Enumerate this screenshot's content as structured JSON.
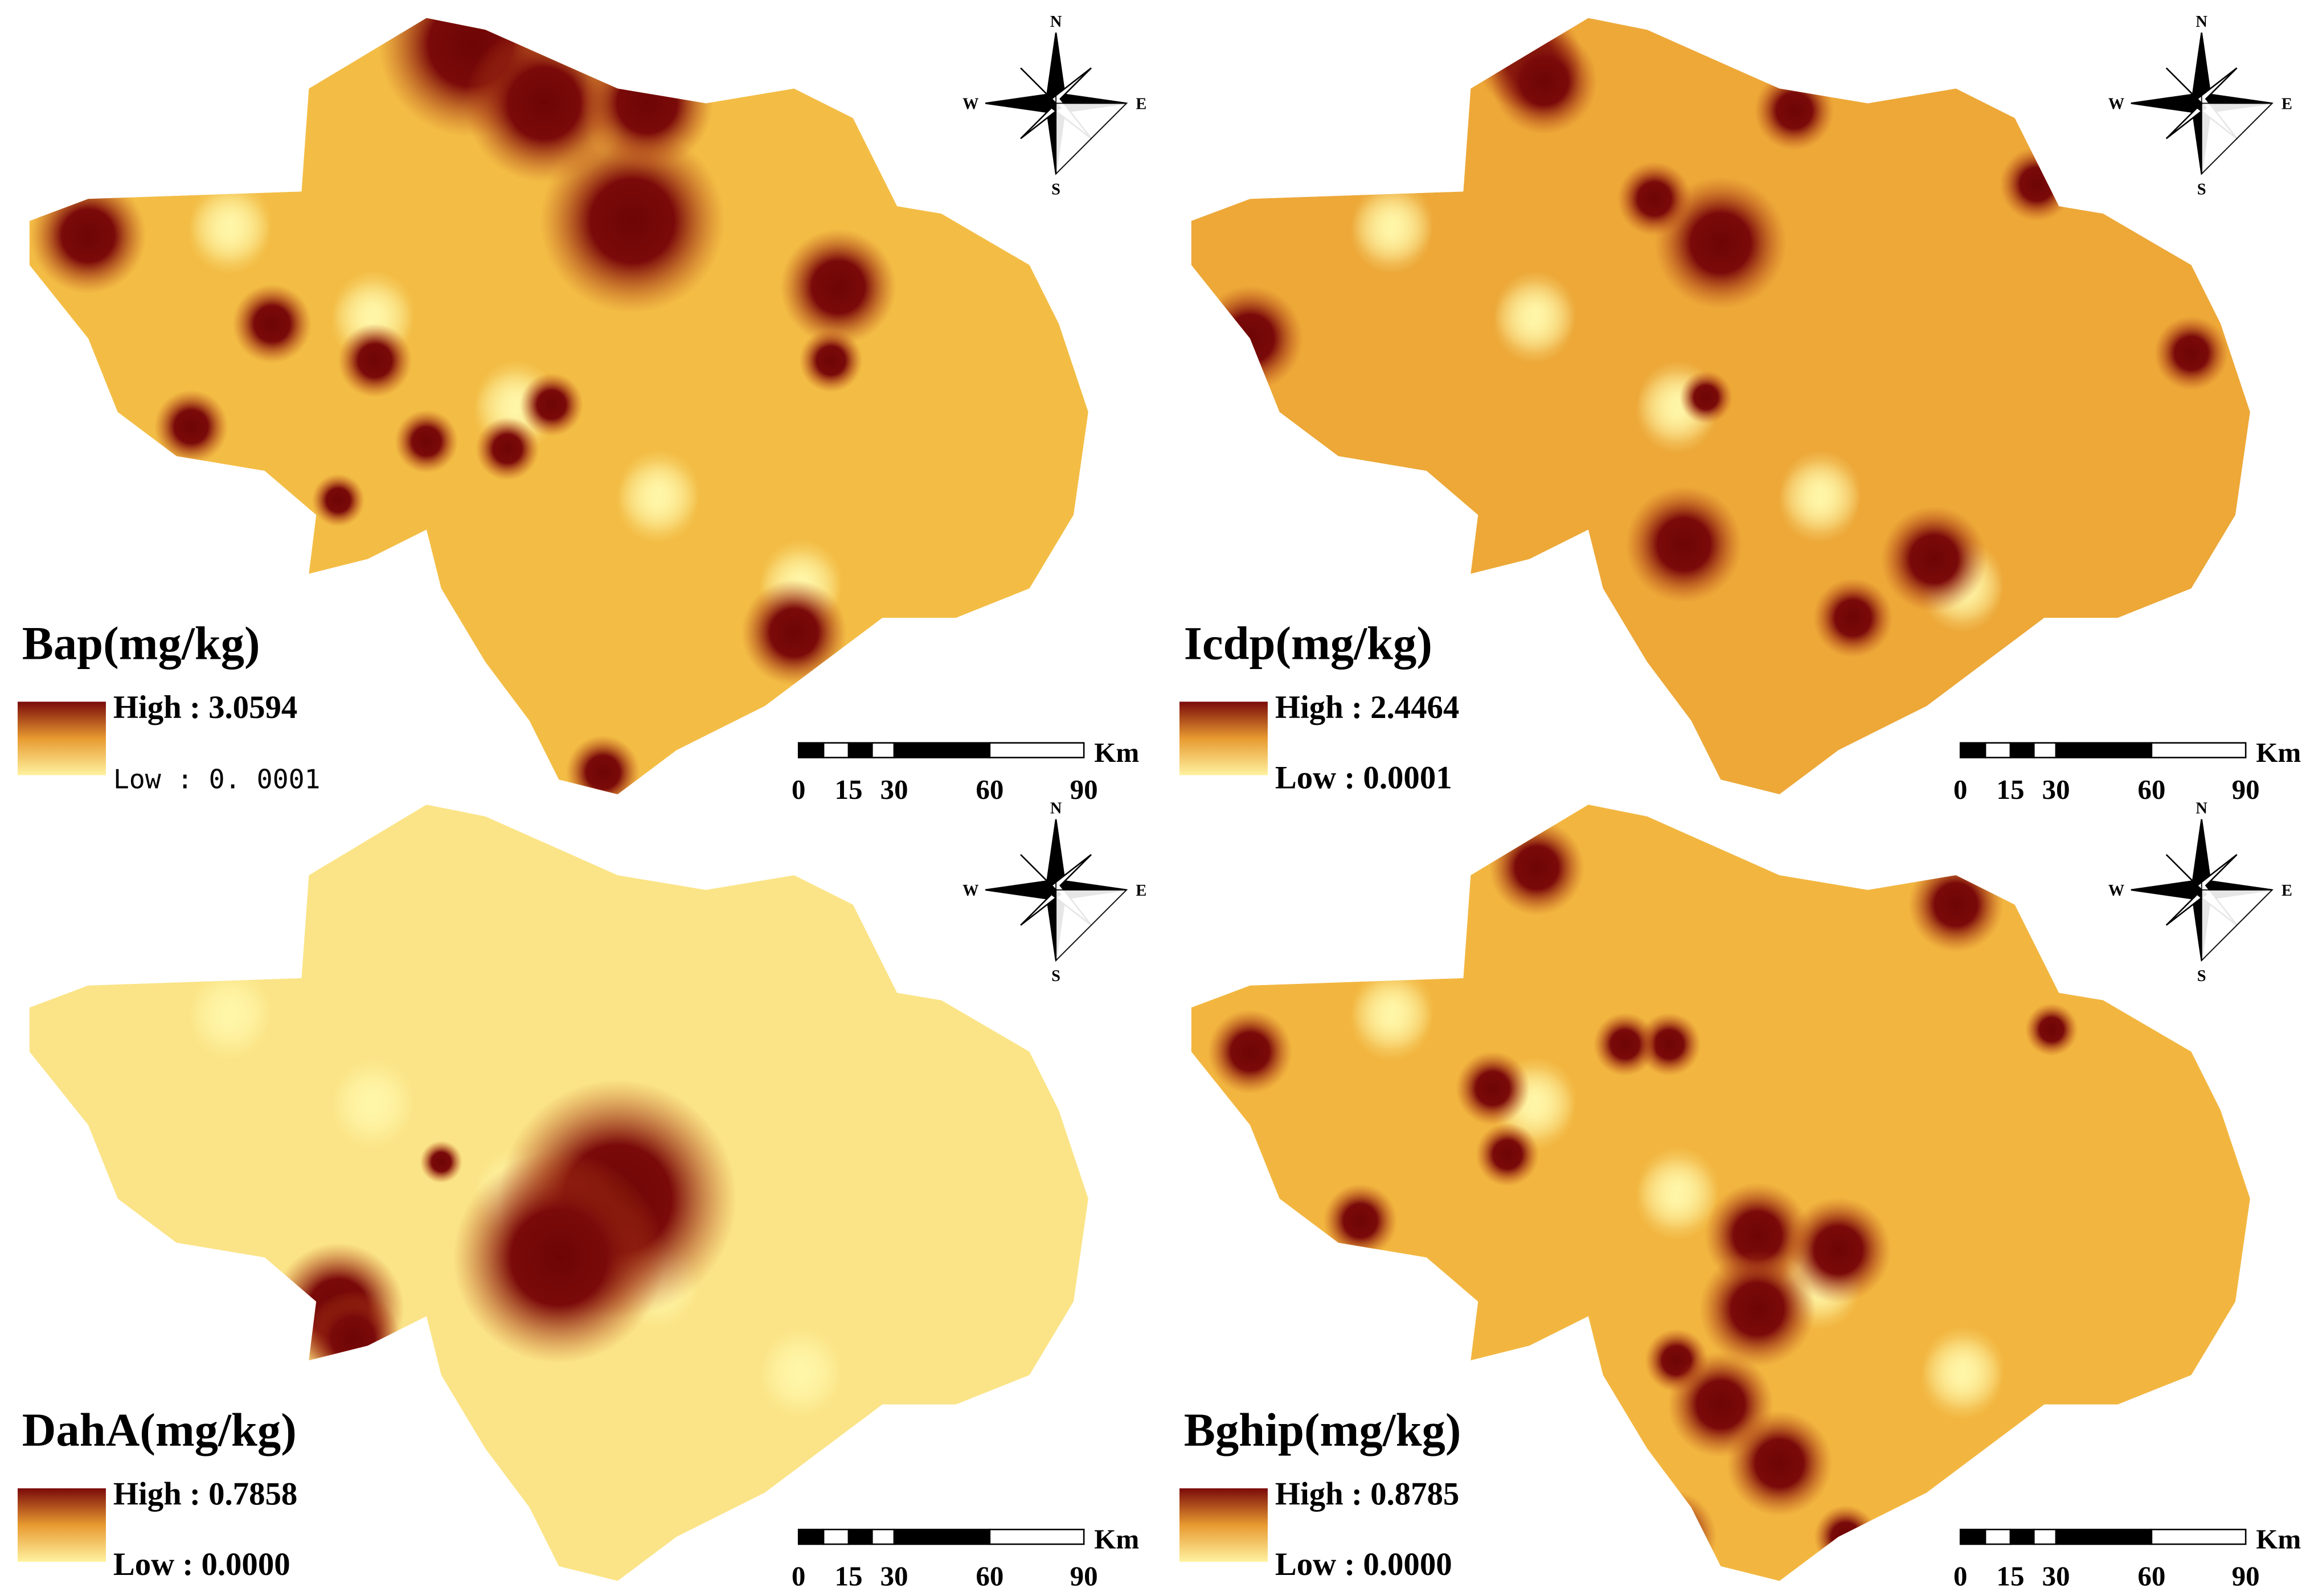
{
  "panels": [
    {
      "title": "Bap(mg/kg)",
      "legend": {
        "high": "High : 3.0594",
        "low": "Low  :  0. 0001"
      },
      "scale_bar": {
        "ticks": [
          "0",
          "15",
          "30",
          "60",
          "90"
        ],
        "unit": "Km"
      },
      "compass": {
        "n": "N",
        "s": "S",
        "e": "E",
        "w": "W"
      }
    },
    {
      "title": "Icdp(mg/kg)",
      "legend": {
        "high": "High : 2.4464",
        "low": "Low : 0.0001"
      },
      "scale_bar": {
        "ticks": [
          "0",
          "15",
          "30",
          "60",
          "90"
        ],
        "unit": "Km"
      },
      "compass": {
        "n": "N",
        "s": "S",
        "e": "E",
        "w": "W"
      }
    },
    {
      "title": "DahA(mg/kg)",
      "legend": {
        "high": "High : 0.7858",
        "low": "Low : 0.0000"
      },
      "scale_bar": {
        "ticks": [
          "0",
          "15",
          "30",
          "60",
          "90"
        ],
        "unit": "Km"
      },
      "compass": {
        "n": "N",
        "s": "S",
        "e": "E",
        "w": "W"
      }
    },
    {
      "title": "Bghip(mg/kg)",
      "legend": {
        "high": "High : 0.8785",
        "low": "Low : 0.0000"
      },
      "scale_bar": {
        "ticks": [
          "0",
          "15",
          "30",
          "60",
          "90"
        ],
        "unit": "Km"
      },
      "compass": {
        "n": "N",
        "s": "S",
        "e": "E",
        "w": "W"
      }
    }
  ]
}
